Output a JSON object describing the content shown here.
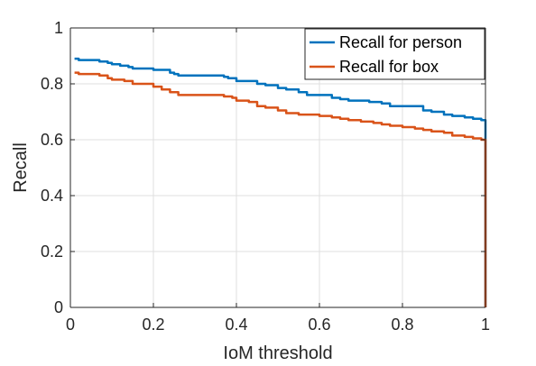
{
  "chart_data": {
    "type": "line",
    "title": "",
    "xlabel": "IoM threshold",
    "ylabel": "Recall",
    "xlim": [
      0,
      1
    ],
    "ylim": [
      0,
      1
    ],
    "xticks": [
      "0",
      "0.2",
      "0.4",
      "0.6",
      "0.8",
      "1"
    ],
    "yticks": [
      "0",
      "0.2",
      "0.4",
      "0.6",
      "0.8",
      "1"
    ],
    "grid": true,
    "legend_position": "top-right",
    "series": [
      {
        "name": "Recall for person",
        "color": "#0072BD",
        "x": [
          0.01,
          0.02,
          0.05,
          0.07,
          0.09,
          0.1,
          0.12,
          0.14,
          0.15,
          0.18,
          0.2,
          0.22,
          0.24,
          0.25,
          0.26,
          0.3,
          0.35,
          0.37,
          0.38,
          0.4,
          0.43,
          0.45,
          0.47,
          0.5,
          0.52,
          0.55,
          0.57,
          0.6,
          0.63,
          0.65,
          0.67,
          0.7,
          0.72,
          0.75,
          0.77,
          0.8,
          0.85,
          0.87,
          0.9,
          0.92,
          0.95,
          0.97,
          0.99,
          0.995,
          1.0
        ],
        "y": [
          0.89,
          0.885,
          0.885,
          0.88,
          0.875,
          0.87,
          0.865,
          0.86,
          0.855,
          0.855,
          0.85,
          0.85,
          0.84,
          0.835,
          0.83,
          0.83,
          0.83,
          0.825,
          0.82,
          0.81,
          0.81,
          0.8,
          0.795,
          0.785,
          0.78,
          0.77,
          0.76,
          0.76,
          0.75,
          0.745,
          0.74,
          0.74,
          0.735,
          0.73,
          0.72,
          0.72,
          0.705,
          0.7,
          0.69,
          0.685,
          0.68,
          0.675,
          0.67,
          0.67,
          0.0
        ]
      },
      {
        "name": "Recall for box",
        "color": "#D95319",
        "x": [
          0.01,
          0.02,
          0.05,
          0.07,
          0.09,
          0.1,
          0.13,
          0.15,
          0.18,
          0.2,
          0.22,
          0.24,
          0.26,
          0.3,
          0.35,
          0.37,
          0.39,
          0.4,
          0.43,
          0.45,
          0.47,
          0.5,
          0.52,
          0.55,
          0.6,
          0.63,
          0.65,
          0.67,
          0.7,
          0.73,
          0.75,
          0.77,
          0.8,
          0.83,
          0.85,
          0.87,
          0.9,
          0.92,
          0.95,
          0.97,
          0.99,
          0.995,
          1.0
        ],
        "y": [
          0.84,
          0.835,
          0.835,
          0.83,
          0.82,
          0.815,
          0.81,
          0.8,
          0.8,
          0.79,
          0.78,
          0.77,
          0.76,
          0.76,
          0.76,
          0.755,
          0.75,
          0.74,
          0.735,
          0.72,
          0.715,
          0.705,
          0.695,
          0.69,
          0.685,
          0.68,
          0.675,
          0.67,
          0.665,
          0.66,
          0.655,
          0.65,
          0.645,
          0.64,
          0.635,
          0.63,
          0.625,
          0.615,
          0.61,
          0.605,
          0.6,
          0.6,
          0.0
        ]
      }
    ]
  }
}
